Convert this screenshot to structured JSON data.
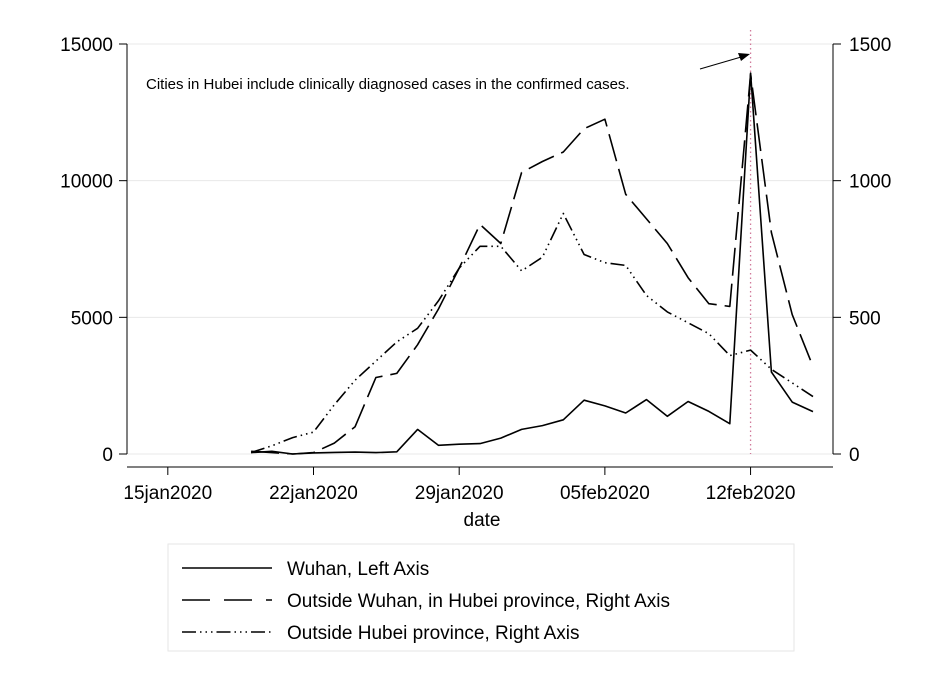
{
  "chart_data": {
    "type": "line",
    "title": "",
    "xlabel": "date",
    "ylabel_left": "",
    "ylabel_right": "",
    "x_axis": {
      "type": "date",
      "range": [
        "2020-01-14",
        "2020-02-15"
      ],
      "ticks": [
        {
          "date": "2020-01-15",
          "label": "15jan2020"
        },
        {
          "date": "2020-01-22",
          "label": "22jan2020"
        },
        {
          "date": "2020-01-29",
          "label": "29jan2020"
        },
        {
          "date": "2020-02-05",
          "label": "05feb2020"
        },
        {
          "date": "2020-02-12",
          "label": "12feb2020"
        }
      ]
    },
    "y_left": {
      "range": [
        0,
        15000
      ],
      "ticks": [
        0,
        5000,
        10000,
        15000
      ],
      "labels": [
        "0",
        "5000",
        "10000",
        "15000"
      ]
    },
    "y_right": {
      "range": [
        0,
        1500
      ],
      "ticks": [
        0,
        500,
        1000,
        1500
      ],
      "labels": [
        "0",
        "500",
        "1000",
        "1500"
      ]
    },
    "grid": true,
    "legend_position": "bottom",
    "x": [
      "2020-01-19",
      "2020-01-20",
      "2020-01-21",
      "2020-01-22",
      "2020-01-23",
      "2020-01-24",
      "2020-01-25",
      "2020-01-26",
      "2020-01-27",
      "2020-01-28",
      "2020-01-29",
      "2020-01-30",
      "2020-01-31",
      "2020-02-01",
      "2020-02-02",
      "2020-02-03",
      "2020-02-04",
      "2020-02-05",
      "2020-02-06",
      "2020-02-07",
      "2020-02-08",
      "2020-02-09",
      "2020-02-10",
      "2020-02-11",
      "2020-02-12",
      "2020-02-13",
      "2020-02-14",
      "2020-02-15"
    ],
    "series": [
      {
        "name": "Wuhan, Left Axis",
        "axis": "left",
        "dash": "solid",
        "values": [
          50,
          100,
          0,
          40,
          60,
          70,
          50,
          80,
          900,
          320,
          360,
          380,
          580,
          900,
          1040,
          1250,
          1970,
          1760,
          1500,
          1990,
          1380,
          1920,
          1560,
          1110,
          13940,
          3000,
          1900,
          1550
        ]
      },
      {
        "name": "Outside Wuhan, in Hubei province, Right Axis",
        "axis": "right",
        "dash": "longdash",
        "values": [
          10,
          5,
          0,
          5,
          40,
          100,
          280,
          295,
          400,
          530,
          680,
          840,
          770,
          1030,
          1070,
          1105,
          1190,
          1225,
          950,
          860,
          770,
          645,
          550,
          540,
          1390,
          810,
          510,
          320
        ]
      },
      {
        "name": "Outside Hubei province, Right Axis",
        "axis": "right",
        "dash": "dashdot",
        "values": [
          5,
          30,
          60,
          80,
          180,
          270,
          340,
          410,
          460,
          560,
          680,
          760,
          760,
          670,
          720,
          880,
          730,
          700,
          690,
          580,
          520,
          480,
          440,
          360,
          380,
          310,
          260,
          210
        ]
      }
    ],
    "annotations": [
      {
        "text": "Cities in Hubei include clinically diagnosed cases in the confirmed cases.",
        "x": "2020-02-12",
        "type": "vline-dotted",
        "color": "#d07a9a"
      }
    ],
    "colors": {
      "line": "#000000",
      "grid": "#e8e8e8",
      "refline": "#d07a9a",
      "legend_border": "#e6e6e6"
    }
  }
}
